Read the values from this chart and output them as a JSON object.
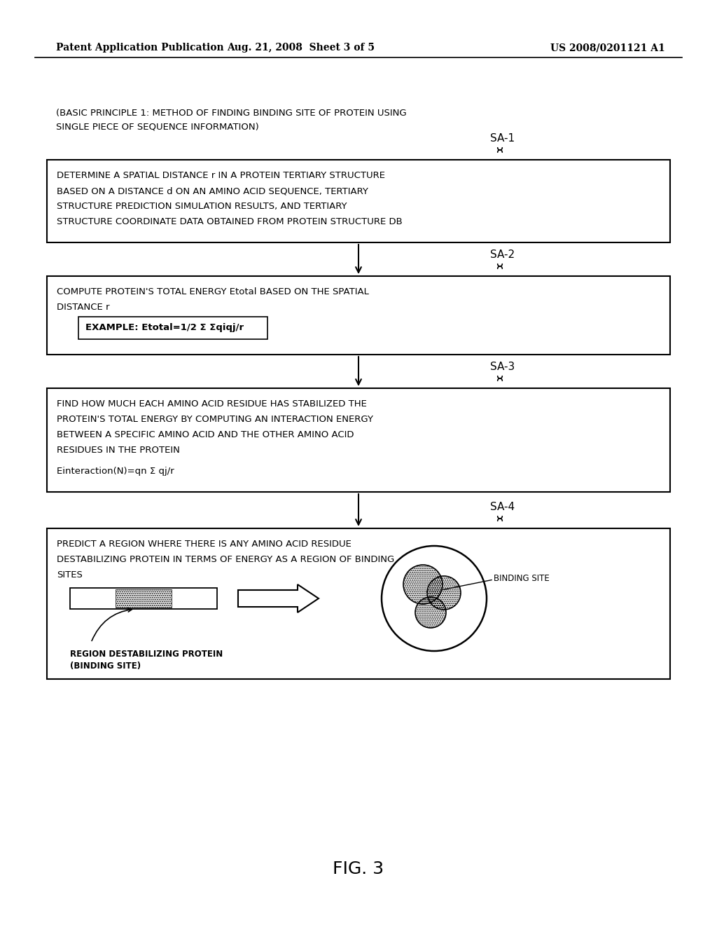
{
  "bg_color": "#ffffff",
  "header_left": "Patent Application Publication",
  "header_mid": "Aug. 21, 2008  Sheet 3 of 5",
  "header_right": "US 2008/0201121 A1",
  "intro_line1": "(BASIC PRINCIPLE 1: METHOD OF FINDING BINDING SITE OF PROTEIN USING",
  "intro_line2": "SINGLE PIECE OF SEQUENCE INFORMATION)",
  "step_labels": [
    "SA-1",
    "SA-2",
    "SA-3",
    "SA-4"
  ],
  "box1_lines": [
    "DETERMINE A SPATIAL DISTANCE r IN A PROTEIN TERTIARY STRUCTURE",
    "BASED ON A DISTANCE d ON AN AMINO ACID SEQUENCE, TERTIARY",
    "STRUCTURE PREDICTION SIMULATION RESULTS, AND TERTIARY",
    "STRUCTURE COORDINATE DATA OBTAINED FROM PROTEIN STRUCTURE DB"
  ],
  "box2_lines": [
    "COMPUTE PROTEIN'S TOTAL ENERGY Etotal BASED ON THE SPATIAL",
    "DISTANCE r"
  ],
  "box2_formula": "EXAMPLE: Etotal=1/2 Σ Σqiqj/r",
  "box3_lines": [
    "FIND HOW MUCH EACH AMINO ACID RESIDUE HAS STABILIZED THE",
    "PROTEIN'S TOTAL ENERGY BY COMPUTING AN INTERACTION ENERGY",
    "BETWEEN A SPECIFIC AMINO ACID AND THE OTHER AMINO ACID",
    "RESIDUES IN THE PROTEIN"
  ],
  "box3_formula": "Einteraction(N)=qn Σ qj/r",
  "box4_lines": [
    "PREDICT A REGION WHERE THERE IS ANY AMINO ACID RESIDUE",
    "DESTABILIZING PROTEIN IN TERMS OF ENERGY AS A REGION OF BINDING",
    "SITES"
  ],
  "binding_site_label": "BINDING SITE",
  "region_label_line1": "REGION DESTABILIZING PROTEIN",
  "region_label_line2": "(BINDING SITE)",
  "figure_label": "FIG. 3"
}
